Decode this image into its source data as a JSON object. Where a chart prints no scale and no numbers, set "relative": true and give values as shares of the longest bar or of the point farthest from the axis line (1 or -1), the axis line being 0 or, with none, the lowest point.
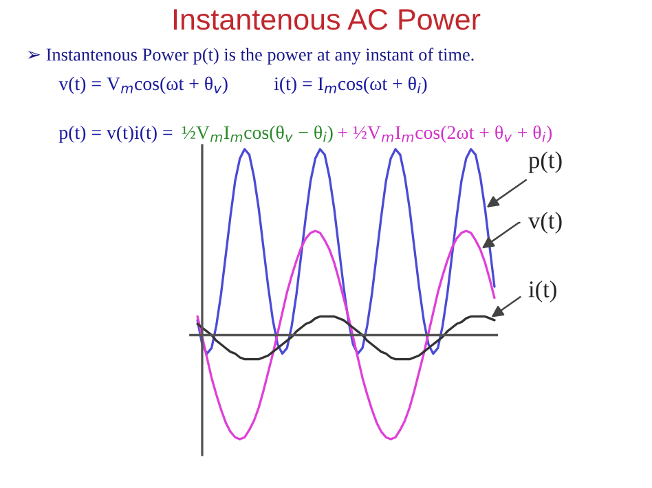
{
  "chart_data": {
    "type": "line",
    "relative": true,
    "title": "Instantenous AC Power",
    "subtitle": "➢ Instantenous Power p(t) is the power at any instant of time.",
    "annotations": [
      "v(t) = V$_{m}$cos(ωt + θ$_{v}$)",
      "i(t) = I$_{m}$cos(ωt + θ$_{i}$)",
      "p(t) = v(t)i(t) = ",
      "½V$_{m}$I$_{m}$cos(θ$_{v}$ − θ$_{i}$)",
      "+ ½V$_{m}$I$_{m}$cos(2ωt + θ$_{v}$ + θ$_{i}$)"
    ],
    "categories": [
      null,
      null,
      null,
      null,
      null,
      null,
      null,
      null,
      null,
      null,
      null,
      null,
      null,
      null,
      null,
      null,
      null,
      null,
      null,
      null,
      null,
      null,
      null,
      null,
      null,
      null,
      null,
      null,
      null,
      null,
      null,
      null,
      null,
      null,
      null,
      null,
      null,
      null,
      null,
      null,
      null,
      null,
      null,
      null,
      null,
      null,
      null,
      null,
      null,
      null,
      null,
      null,
      null,
      null,
      null,
      null,
      null,
      null,
      null,
      null,
      null,
      null,
      null,
      null
    ],
    "legend": false,
    "marker": "none",
    "line_style": "solid",
    "series": [
      {
        "name": "p(t)",
        "color": "#4b4bd6",
        "values": [
          0.08,
          -0.05,
          -0.1,
          -0.07,
          0.05,
          0.22,
          0.43,
          0.64,
          0.83,
          0.95,
          1,
          0.97,
          0.85,
          0.68,
          0.47,
          0.26,
          0.08,
          -0.05,
          -0.1,
          -0.07,
          0.05,
          0.22,
          0.43,
          0.64,
          0.83,
          0.95,
          1,
          0.97,
          0.85,
          0.68,
          0.47,
          0.26,
          0.08,
          -0.05,
          -0.1,
          -0.07,
          0.05,
          0.22,
          0.43,
          0.64,
          0.83,
          0.95,
          1,
          0.97,
          0.85,
          0.68,
          0.47,
          0.26,
          0.08,
          -0.05,
          -0.1,
          -0.07,
          0.05,
          0.22,
          0.43,
          0.64,
          0.83,
          0.95,
          1,
          0.97,
          0.85,
          0.68,
          0.47,
          0.26
        ]
      },
      {
        "name": "v(t)",
        "color": "#e040d8",
        "values": [
          0.1,
          -0.01,
          -0.12,
          -0.23,
          -0.32,
          -0.4,
          -0.47,
          -0.52,
          -0.55,
          -0.56,
          -0.55,
          -0.51,
          -0.46,
          -0.39,
          -0.3,
          -0.2,
          -0.1,
          0.01,
          0.12,
          0.23,
          0.32,
          0.4,
          0.47,
          0.52,
          0.55,
          0.56,
          0.55,
          0.51,
          0.46,
          0.39,
          0.3,
          0.2,
          0.1,
          -0.01,
          -0.12,
          -0.23,
          -0.32,
          -0.4,
          -0.47,
          -0.52,
          -0.55,
          -0.56,
          -0.55,
          -0.51,
          -0.46,
          -0.39,
          -0.3,
          -0.2,
          -0.1,
          0.01,
          0.12,
          0.23,
          0.32,
          0.4,
          0.47,
          0.52,
          0.55,
          0.56,
          0.55,
          0.51,
          0.46,
          0.39,
          0.3,
          0.2
        ]
      },
      {
        "name": "i(t)",
        "color": "#333333",
        "values": [
          0.06,
          0.04,
          0.02,
          0,
          -0.03,
          -0.05,
          -0.07,
          -0.09,
          -0.1,
          -0.12,
          -0.13,
          -0.13,
          -0.13,
          -0.13,
          -0.12,
          -0.11,
          -0.09,
          -0.07,
          -0.05,
          -0.03,
          -0.01,
          0.02,
          0.04,
          0.06,
          0.07,
          0.09,
          0.1,
          0.1,
          0.1,
          0.1,
          0.09,
          0.08,
          0.06,
          0.04,
          0.02,
          0,
          -0.03,
          -0.05,
          -0.07,
          -0.09,
          -0.1,
          -0.12,
          -0.13,
          -0.13,
          -0.13,
          -0.13,
          -0.12,
          -0.11,
          -0.09,
          -0.07,
          -0.05,
          -0.03,
          -0.01,
          0.02,
          0.04,
          0.06,
          0.07,
          0.09,
          0.1,
          0.1,
          0.1,
          0.1,
          0.09,
          0.08
        ]
      }
    ]
  }
}
